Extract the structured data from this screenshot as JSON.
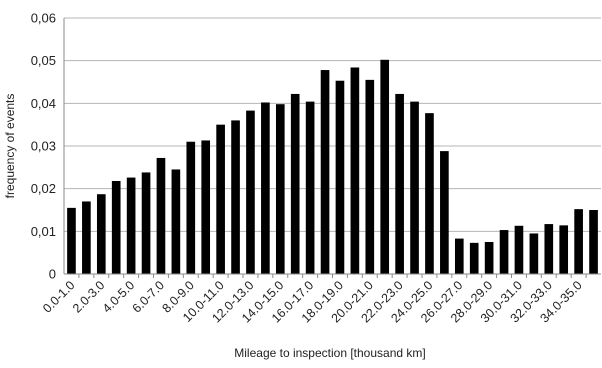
{
  "chart_data": {
    "type": "bar",
    "title": "",
    "xlabel": "Mileage to inspection [thousand km]",
    "ylabel": "frequency of events",
    "ylim": [
      0,
      0.06
    ],
    "yticks": [
      "0",
      "0,01",
      "0,02",
      "0,03",
      "0,04",
      "0,05",
      "0,06"
    ],
    "grid": true,
    "bar_color": "#000000",
    "categories": [
      "0.0-1.0",
      "1.0-2.0",
      "2.0-3.0",
      "3.0-4.0",
      "4.0-5.0",
      "5.0-6.0",
      "6.0-7.0",
      "7.0-8.0",
      "8.0-9.0",
      "9.0-10.0",
      "10.0-11.0",
      "11.0-12.0",
      "12.0-13.0",
      "13.0-14.0",
      "14.0-15.0",
      "15.0-16.0",
      "16.0-17.0",
      "17.0-18.0",
      "18.0-19.0",
      "19.0-20.0",
      "20.0-21.0",
      "21.0-22.0",
      "22.0-23.0",
      "23.0-24.0",
      "24.0-25.0",
      "25.0-26.0",
      "26.0-27.0",
      "27.0-28.0",
      "28.0-29.0",
      "29.0-30.0",
      "30.0-31.0",
      "31.0-32.0",
      "32.0-33.0",
      "33.0-34.0",
      "34.0-35.0",
      "35.0-36.0"
    ],
    "visible_tick_labels": [
      "0.0-1.0",
      "2.0-3.0",
      "4.0-5.0",
      "6.0-7.0",
      "8.0-9.0",
      "10.0-11.0",
      "12.0-13.0",
      "14.0-15.0",
      "16.0-17.0",
      "18.0-19.0",
      "20.0-21.0",
      "22.0-23.0",
      "24.0-25.0",
      "26.0-27.0",
      "28.0-29.0",
      "30.0-31.0",
      "32.0-33.0",
      "34.0-35.0"
    ],
    "values": [
      0.0155,
      0.017,
      0.0187,
      0.0218,
      0.0226,
      0.0238,
      0.0272,
      0.0245,
      0.031,
      0.0313,
      0.035,
      0.036,
      0.0383,
      0.0402,
      0.0398,
      0.0422,
      0.0404,
      0.0478,
      0.0453,
      0.0484,
      0.0455,
      0.0502,
      0.0422,
      0.0404,
      0.0377,
      0.0288,
      0.0083,
      0.0073,
      0.0075,
      0.0103,
      0.0113,
      0.0095,
      0.0117,
      0.0114,
      0.0152,
      0.015
    ]
  }
}
